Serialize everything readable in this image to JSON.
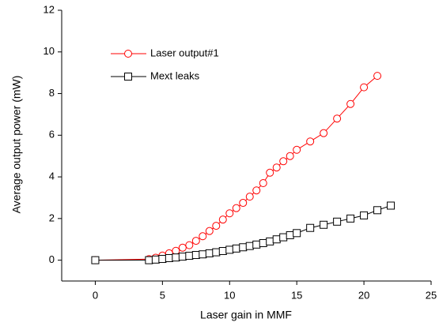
{
  "chart_data": {
    "type": "line",
    "xlabel": "Laser gain in MMF",
    "ylabel": "Average output power (mW)",
    "xlim": [
      -2.5,
      25
    ],
    "xticks": [
      0,
      5,
      10,
      15,
      20,
      25
    ],
    "ylim": [
      -1,
      12
    ],
    "yticks": [
      0,
      2,
      4,
      6,
      8,
      10,
      12
    ],
    "legend": "upper left",
    "series": [
      {
        "name": "Laser output#1",
        "color": "#ff0000",
        "marker": "circle",
        "x": [
          0,
          4,
          4.5,
          5,
          5.5,
          6,
          6.5,
          7,
          7.5,
          8,
          8.5,
          9,
          9.5,
          10,
          10.5,
          11,
          11.5,
          12,
          12.5,
          13,
          13.5,
          14,
          14.5,
          15,
          16,
          17,
          18,
          19,
          20,
          21
        ],
        "values": [
          0,
          0.05,
          0.12,
          0.22,
          0.33,
          0.45,
          0.6,
          0.72,
          0.93,
          1.15,
          1.4,
          1.65,
          1.95,
          2.25,
          2.5,
          2.75,
          3.05,
          3.35,
          3.7,
          4.2,
          4.45,
          4.75,
          5.0,
          5.3,
          5.7,
          6.1,
          6.8,
          7.5,
          8.3,
          8.85
        ]
      },
      {
        "name": "Mext leaks",
        "color": "#000000",
        "marker": "square",
        "x": [
          0,
          4,
          4.5,
          5,
          5.5,
          6,
          6.5,
          7,
          7.5,
          8,
          8.5,
          9,
          9.5,
          10,
          10.5,
          11,
          11.5,
          12,
          12.5,
          13,
          13.5,
          14,
          14.5,
          15,
          16,
          17,
          18,
          19,
          20,
          21,
          22
        ],
        "values": [
          0,
          0,
          0.03,
          0.06,
          0.1,
          0.13,
          0.17,
          0.21,
          0.25,
          0.28,
          0.33,
          0.38,
          0.44,
          0.5,
          0.56,
          0.62,
          0.68,
          0.75,
          0.82,
          0.9,
          1.0,
          1.1,
          1.2,
          1.3,
          1.55,
          1.7,
          1.85,
          2.0,
          2.15,
          2.4,
          2.62
        ]
      }
    ]
  }
}
